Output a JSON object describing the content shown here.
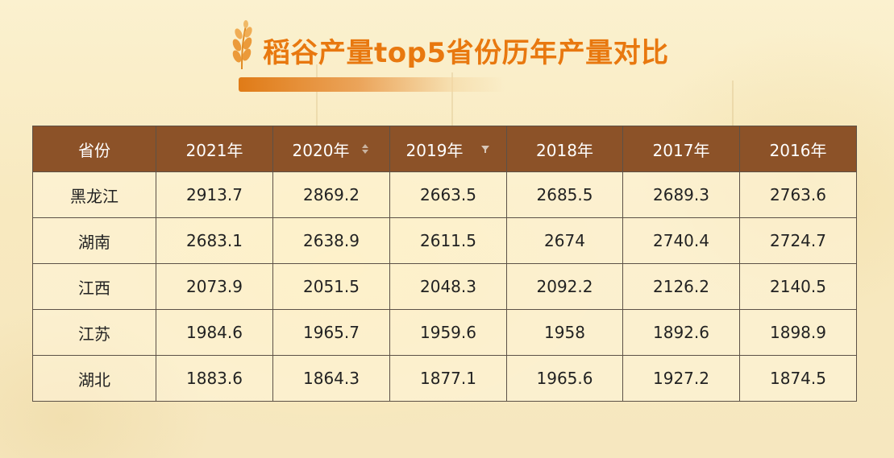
{
  "title": "稻谷产量top5省份历年产量对比",
  "table": {
    "columns": [
      "省份",
      "2021年",
      "2020年",
      "2019年",
      "2018年",
      "2017年",
      "2016年"
    ],
    "rows": [
      [
        "黑龙江",
        "2913.7",
        "2869.2",
        "2663.5",
        "2685.5",
        "2689.3",
        "2763.6"
      ],
      [
        "湖南",
        "2683.1",
        "2638.9",
        "2611.5",
        "2674",
        "2740.4",
        "2724.7"
      ],
      [
        "江西",
        "2073.9",
        "2051.5",
        "2048.3",
        "2092.2",
        "2126.2",
        "2140.5"
      ],
      [
        "江苏",
        "1984.6",
        "1965.7",
        "1959.6",
        "1958",
        "1892.6",
        "1898.9"
      ],
      [
        "湖北",
        "1883.6",
        "1864.3",
        "1877.1",
        "1965.6",
        "1927.2",
        "1874.5"
      ]
    ],
    "sort_icons": {
      "2020年": "sort-both-icon",
      "2019年": "filter-icon"
    }
  },
  "colors": {
    "title": "#e8780f",
    "header_bg": "#8c5228",
    "border": "#5c5147"
  }
}
